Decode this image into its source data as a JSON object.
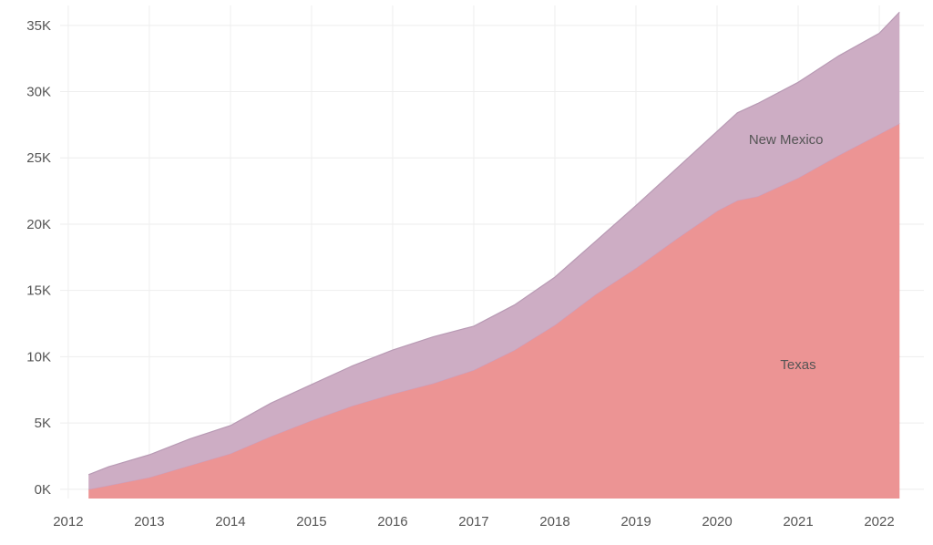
{
  "chart_data": {
    "type": "area",
    "stacked": true,
    "title": "",
    "xlabel": "",
    "ylabel": "",
    "xlim": [
      2011.9,
      2022.55
    ],
    "ylim": [
      -700,
      36500
    ],
    "grid": true,
    "x_ticks": [
      2012,
      2013,
      2014,
      2015,
      2016,
      2017,
      2018,
      2019,
      2020,
      2021,
      2022
    ],
    "x_tick_labels": [
      "2012",
      "2013",
      "2014",
      "2015",
      "2016",
      "2017",
      "2018",
      "2019",
      "2020",
      "2021",
      "2022"
    ],
    "y_ticks": [
      0,
      5000,
      10000,
      15000,
      20000,
      25000,
      30000,
      35000
    ],
    "y_tick_labels": [
      "0K",
      "5K",
      "10K",
      "15K",
      "20K",
      "25K",
      "30K",
      "35K"
    ],
    "x": [
      2012.25,
      2012.5,
      2013.0,
      2013.5,
      2014.0,
      2014.5,
      2015.0,
      2015.5,
      2016.0,
      2016.5,
      2017.0,
      2017.5,
      2018.0,
      2018.5,
      2019.0,
      2019.5,
      2020.0,
      2020.25,
      2020.5,
      2021.0,
      2021.5,
      2022.0,
      2022.25
    ],
    "series": [
      {
        "name": "Texas",
        "color": "#ec9494",
        "values": [
          0,
          300,
          900,
          1800,
          2700,
          4000,
          5200,
          6300,
          7200,
          8000,
          9000,
          10500,
          12400,
          14700,
          16700,
          18900,
          21000,
          21800,
          22100,
          23500,
          25200,
          26800,
          27600
        ]
      },
      {
        "name": "New Mexico",
        "color": "#cdadc4",
        "values": [
          1100,
          1400,
          1700,
          2000,
          2100,
          2500,
          2700,
          3000,
          3300,
          3500,
          3300,
          3400,
          3600,
          4000,
          4700,
          5300,
          6000,
          6600,
          7000,
          7200,
          7500,
          7600,
          8400
        ]
      }
    ],
    "series_label_positions": [
      {
        "name": "Texas",
        "x": 2021.0,
        "y": 9400
      },
      {
        "name": "New Mexico",
        "x": 2020.85,
        "y": 26400
      }
    ]
  }
}
